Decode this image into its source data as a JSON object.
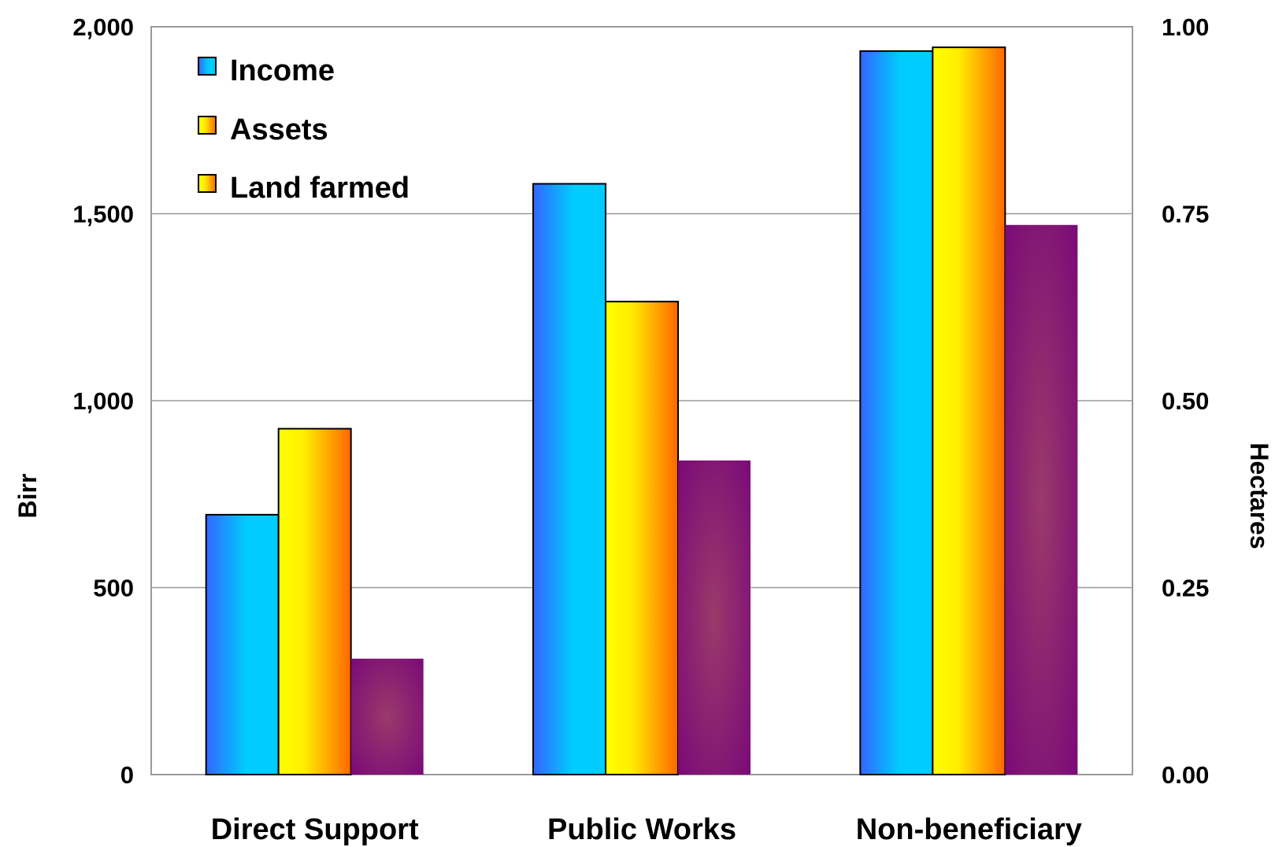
{
  "chart_data": {
    "type": "bar",
    "title": "",
    "categories": [
      "Direct Support",
      "Public Works",
      "Non-beneficiary"
    ],
    "series": [
      {
        "name": "Income",
        "axis": "left",
        "values": [
          695,
          1580,
          1935
        ]
      },
      {
        "name": "Assets",
        "axis": "left",
        "values": [
          925,
          1265,
          1945
        ]
      },
      {
        "name": "Land farmed",
        "axis": "right",
        "values": [
          0.155,
          0.42,
          0.735
        ]
      }
    ],
    "ylabel": "Birr",
    "ylabel_right": "Hectares",
    "ylim": [
      0,
      2000
    ],
    "ylim_right": [
      0,
      1.0
    ],
    "yticks": [
      "0",
      "500",
      "1,000",
      "1,500",
      "2,000"
    ],
    "yticks_right": [
      "0.00",
      "0.25",
      "0.50",
      "0.75",
      "1.00"
    ],
    "grid": true,
    "legend_position": "top-left",
    "colors": {
      "income": [
        "#3366ff",
        "#00ccff"
      ],
      "assets": [
        "#ffff00",
        "#ff6600"
      ],
      "land": [
        "#7a0a78",
        "#96306a"
      ]
    }
  }
}
